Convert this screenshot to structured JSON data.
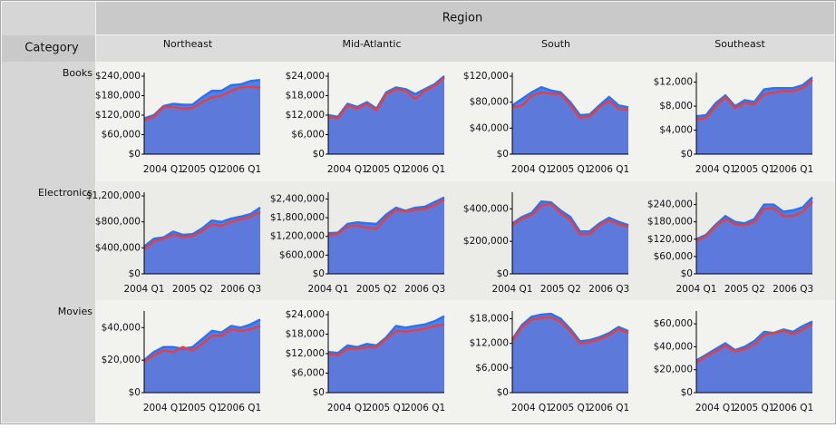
{
  "header": {
    "title": "Region",
    "category_header": "Category",
    "regions": [
      "Northeast",
      "Mid-Atlantic",
      "South",
      "Southeast"
    ]
  },
  "rows": [
    "Books",
    "Electronics",
    "Movies"
  ],
  "chart_data": [
    {
      "type": "area",
      "categories": [
        null,
        null,
        "2004 Q1",
        null,
        null,
        null,
        "2005 Q1",
        null,
        null,
        null,
        "2006 Q1",
        null,
        null
      ],
      "ylim": [
        0,
        240000
      ],
      "yticks": [
        {
          "value": 0,
          "label": "$0"
        },
        {
          "value": 60000,
          "label": "$60,000"
        },
        {
          "value": 120000,
          "label": "$120,000"
        },
        {
          "value": 180000,
          "label": "$180,000"
        },
        {
          "value": 240000,
          "label": "$240,000"
        }
      ],
      "series": [
        {
          "color": "#2f6ff0",
          "values": [
            110000,
            120000,
            148000,
            155000,
            152000,
            152000,
            175000,
            195000,
            195000,
            212000,
            215000,
            225000,
            228000
          ]
        },
        {
          "color": "#e04048",
          "values": [
            105000,
            115000,
            145000,
            145000,
            140000,
            142000,
            160000,
            175000,
            180000,
            195000,
            205000,
            208000,
            205000
          ]
        }
      ]
    },
    {
      "type": "area",
      "categories": [
        null,
        null,
        "2004 Q1",
        null,
        null,
        null,
        "2005 Q1",
        null,
        null,
        null,
        "2006 Q1",
        null,
        null
      ],
      "ylim": [
        0,
        24000
      ],
      "yticks": [
        {
          "value": 0,
          "label": "$0"
        },
        {
          "value": 6000,
          "label": "$6,000"
        },
        {
          "value": 12000,
          "label": "$12,000"
        },
        {
          "value": 18000,
          "label": "$18,000"
        },
        {
          "value": 24000,
          "label": "$24,000"
        }
      ],
      "series": [
        {
          "color": "#2f6ff0",
          "values": [
            12000,
            11500,
            15500,
            14500,
            16000,
            14000,
            19000,
            20500,
            20000,
            18500,
            20000,
            21500,
            24000
          ]
        },
        {
          "color": "#e04048",
          "values": [
            11500,
            11000,
            15000,
            14000,
            15500,
            13500,
            18500,
            20000,
            19500,
            17000,
            19500,
            21000,
            23500
          ]
        }
      ]
    },
    {
      "type": "area",
      "categories": [
        null,
        null,
        "2004 Q1",
        null,
        null,
        null,
        "2005 Q1",
        null,
        null,
        null,
        "2006 Q1",
        null,
        null
      ],
      "ylim": [
        0,
        120000
      ],
      "yticks": [
        {
          "value": 0,
          "label": "$0"
        },
        {
          "value": 40000,
          "label": "$40,000"
        },
        {
          "value": 80000,
          "label": "$80,000"
        },
        {
          "value": 120000,
          "label": "$120,000"
        }
      ],
      "series": [
        {
          "color": "#2f6ff0",
          "values": [
            75000,
            85000,
            95000,
            103000,
            98000,
            95000,
            80000,
            60000,
            61000,
            75000,
            88000,
            75000,
            72000
          ]
        },
        {
          "color": "#e04048",
          "values": [
            72000,
            75000,
            90000,
            95000,
            93000,
            92000,
            76000,
            56000,
            58000,
            72000,
            82000,
            70000,
            68000
          ]
        }
      ]
    },
    {
      "type": "area",
      "categories": [
        null,
        null,
        "2004 Q1",
        null,
        null,
        null,
        "2005 Q1",
        null,
        null,
        null,
        "2006 Q1",
        null,
        null
      ],
      "ylim": [
        0,
        13000
      ],
      "yticks": [
        {
          "value": 0,
          "label": "$0"
        },
        {
          "value": 4000,
          "label": "$4,000"
        },
        {
          "value": 8000,
          "label": "$8,000"
        },
        {
          "value": 12000,
          "label": "$12,000"
        }
      ],
      "series": [
        {
          "color": "#2f6ff0",
          "values": [
            6300,
            6500,
            8500,
            9800,
            8000,
            9000,
            8700,
            10800,
            11000,
            11000,
            11000,
            11500,
            12800
          ]
        },
        {
          "color": "#e04048",
          "values": [
            5800,
            6000,
            8000,
            9500,
            7700,
            8500,
            8300,
            10000,
            10300,
            10500,
            10500,
            11000,
            12400
          ]
        }
      ]
    },
    {
      "type": "area",
      "categories": [
        "2004 Q1",
        null,
        null,
        null,
        null,
        "2005 Q2",
        null,
        null,
        null,
        null,
        "2006 Q3",
        null,
        null
      ],
      "ylim": [
        0,
        1200000
      ],
      "yticks": [
        {
          "value": 0,
          "label": "$0"
        },
        {
          "value": 400000,
          "label": "$400,000"
        },
        {
          "value": 800000,
          "label": "$800,000"
        },
        {
          "value": 1200000,
          "label": "$1,200,000"
        }
      ],
      "series": [
        {
          "color": "#2f6ff0",
          "values": [
            420000,
            540000,
            560000,
            650000,
            600000,
            610000,
            700000,
            820000,
            800000,
            850000,
            880000,
            920000,
            1020000
          ]
        },
        {
          "color": "#e04048",
          "values": [
            380000,
            500000,
            540000,
            600000,
            570000,
            580000,
            660000,
            760000,
            740000,
            800000,
            840000,
            880000,
            950000
          ]
        }
      ]
    },
    {
      "type": "area",
      "categories": [
        "2004 Q1",
        null,
        null,
        null,
        null,
        "2005 Q2",
        null,
        null,
        null,
        null,
        "2006 Q3",
        null,
        null
      ],
      "ylim": [
        0,
        2500000
      ],
      "yticks": [
        {
          "value": 0,
          "label": "$0"
        },
        {
          "value": 600000,
          "label": "$600,000"
        },
        {
          "value": 1200000,
          "label": "$1,200,000"
        },
        {
          "value": 1800000,
          "label": "$1,800,000"
        },
        {
          "value": 2400000,
          "label": "$2,400,000"
        }
      ],
      "series": [
        {
          "color": "#2f6ff0",
          "values": [
            1300000,
            1320000,
            1600000,
            1650000,
            1620000,
            1600000,
            1900000,
            2120000,
            2020000,
            2120000,
            2150000,
            2300000,
            2450000
          ]
        },
        {
          "color": "#e04048",
          "values": [
            1250000,
            1280000,
            1520000,
            1550000,
            1480000,
            1450000,
            1800000,
            2050000,
            2000000,
            2050000,
            2080000,
            2200000,
            2380000
          ]
        }
      ]
    },
    {
      "type": "area",
      "categories": [
        "2004 Q1",
        null,
        null,
        null,
        null,
        "2005 Q2",
        null,
        null,
        null,
        null,
        "2006 Q3",
        null,
        null
      ],
      "ylim": [
        0,
        480000
      ],
      "yticks": [
        {
          "value": 0,
          "label": "$0"
        },
        {
          "value": 200000,
          "label": "$200,000"
        },
        {
          "value": 400000,
          "label": "$400,000"
        }
      ],
      "series": [
        {
          "color": "#2f6ff0",
          "values": [
            310000,
            350000,
            375000,
            445000,
            440000,
            390000,
            350000,
            260000,
            262000,
            310000,
            345000,
            320000,
            300000
          ]
        },
        {
          "color": "#e04048",
          "values": [
            300000,
            340000,
            360000,
            420000,
            430000,
            375000,
            330000,
            245000,
            245000,
            300000,
            330000,
            305000,
            290000
          ]
        }
      ]
    },
    {
      "type": "area",
      "categories": [
        "2004 Q1",
        null,
        null,
        null,
        null,
        "2005 Q2",
        null,
        null,
        null,
        null,
        "2006 Q3",
        null,
        null
      ],
      "ylim": [
        0,
        270000
      ],
      "yticks": [
        {
          "value": 0,
          "label": "$0"
        },
        {
          "value": 60000,
          "label": "$60,000"
        },
        {
          "value": 120000,
          "label": "$120,000"
        },
        {
          "value": 180000,
          "label": "$180,000"
        },
        {
          "value": 240000,
          "label": "$240,000"
        }
      ],
      "series": [
        {
          "color": "#2f6ff0",
          "values": [
            120000,
            135000,
            170000,
            200000,
            180000,
            175000,
            190000,
            240000,
            240000,
            215000,
            220000,
            230000,
            265000
          ]
        },
        {
          "color": "#e04048",
          "values": [
            115000,
            130000,
            165000,
            190000,
            172000,
            168000,
            180000,
            225000,
            228000,
            200000,
            200000,
            215000,
            250000
          ]
        }
      ]
    },
    {
      "type": "area",
      "categories": [
        null,
        null,
        "2004 Q1",
        null,
        null,
        null,
        "2005 Q1",
        null,
        null,
        null,
        "2006 Q1",
        null,
        null
      ],
      "ylim": [
        0,
        48000
      ],
      "yticks": [
        {
          "value": 0,
          "label": "$0"
        },
        {
          "value": 20000,
          "label": "$20,000"
        },
        {
          "value": 40000,
          "label": "$40,000"
        }
      ],
      "series": [
        {
          "color": "#2f6ff0",
          "values": [
            20000,
            25000,
            28000,
            28000,
            27000,
            28000,
            33000,
            38000,
            37000,
            41000,
            40000,
            42000,
            45000
          ]
        },
        {
          "color": "#e04048",
          "values": [
            19000,
            23000,
            26000,
            25000,
            28000,
            26000,
            30000,
            35000,
            35000,
            39000,
            38000,
            39000,
            41000
          ]
        }
      ]
    },
    {
      "type": "area",
      "categories": [
        null,
        null,
        "2004 Q1",
        null,
        null,
        null,
        "2005 Q1",
        null,
        null,
        null,
        "2006 Q1",
        null,
        null
      ],
      "ylim": [
        0,
        24000
      ],
      "yticks": [
        {
          "value": 0,
          "label": "$0"
        },
        {
          "value": 6000,
          "label": "$6,000"
        },
        {
          "value": 12000,
          "label": "$12,000"
        },
        {
          "value": 18000,
          "label": "$18,000"
        },
        {
          "value": 24000,
          "label": "$24,000"
        }
      ],
      "series": [
        {
          "color": "#2f6ff0",
          "values": [
            12500,
            12200,
            14500,
            14000,
            15000,
            14500,
            17000,
            20500,
            20000,
            20500,
            21000,
            22000,
            23500
          ]
        },
        {
          "color": "#e04048",
          "values": [
            12000,
            11500,
            13500,
            13500,
            14000,
            14000,
            16500,
            19000,
            18800,
            19200,
            19800,
            20500,
            21000
          ]
        }
      ]
    },
    {
      "type": "area",
      "categories": [
        null,
        null,
        "2004 Q1",
        null,
        null,
        null,
        "2005 Q1",
        null,
        null,
        null,
        "2006 Q1",
        null,
        null
      ],
      "ylim": [
        0,
        19000
      ],
      "yticks": [
        {
          "value": 0,
          "label": "$0"
        },
        {
          "value": 6000,
          "label": "$6,000"
        },
        {
          "value": 12000,
          "label": "$12,000"
        },
        {
          "value": 18000,
          "label": "$18,000"
        }
      ],
      "series": [
        {
          "color": "#2f6ff0",
          "values": [
            13000,
            16500,
            18500,
            19000,
            19200,
            18000,
            15500,
            12500,
            12800,
            13500,
            14500,
            16000,
            15000
          ]
        },
        {
          "color": "#e04048",
          "values": [
            12500,
            16000,
            17800,
            18200,
            18400,
            17300,
            15000,
            12000,
            12300,
            13000,
            14000,
            15500,
            14600
          ]
        }
      ]
    },
    {
      "type": "area",
      "categories": [
        null,
        null,
        "2004 Q1",
        null,
        null,
        null,
        "2005 Q1",
        null,
        null,
        null,
        "2006 Q1",
        null,
        null
      ],
      "ylim": [
        0,
        68000
      ],
      "yticks": [
        {
          "value": 0,
          "label": "$0"
        },
        {
          "value": 20000,
          "label": "$20,000"
        },
        {
          "value": 40000,
          "label": "$40,000"
        },
        {
          "value": 60000,
          "label": "$60,000"
        }
      ],
      "series": [
        {
          "color": "#2f6ff0",
          "values": [
            28000,
            33000,
            38000,
            43000,
            37000,
            40000,
            45000,
            53000,
            52000,
            55000,
            53000,
            58000,
            62000
          ]
        },
        {
          "color": "#e04048",
          "values": [
            26000,
            32000,
            36000,
            41000,
            36000,
            38000,
            42000,
            50000,
            52000,
            54000,
            51000,
            55000,
            60000
          ]
        }
      ]
    }
  ]
}
